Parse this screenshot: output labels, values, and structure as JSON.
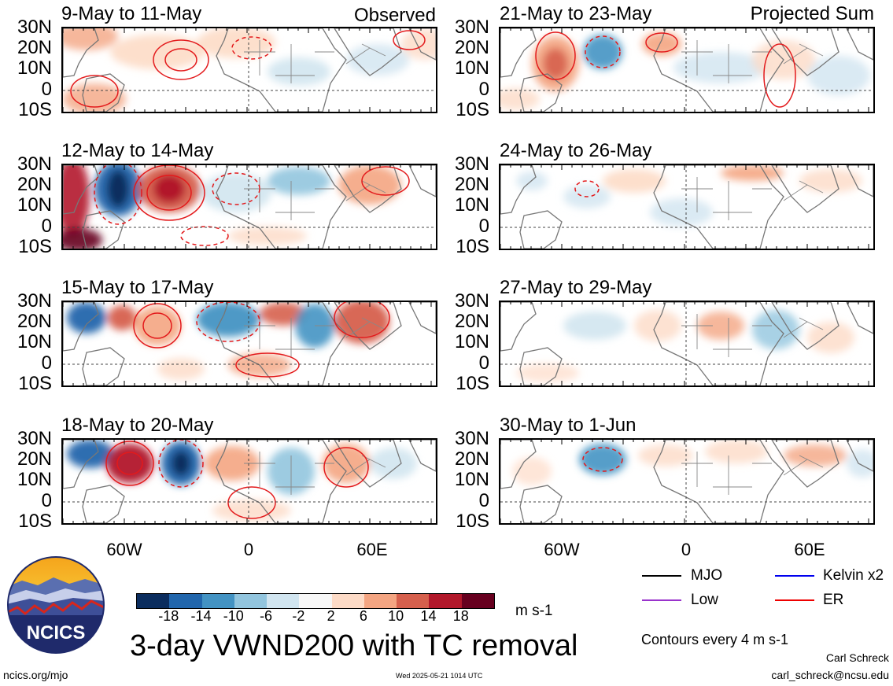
{
  "panels": {
    "observed": [
      {
        "title": "9-May to 11-May"
      },
      {
        "title": "12-May to 14-May"
      },
      {
        "title": "15-May to 17-May"
      },
      {
        "title": "18-May to 20-May"
      }
    ],
    "projected": [
      {
        "title": "21-May to 23-May"
      },
      {
        "title": "24-May to 26-May"
      },
      {
        "title": "27-May to 29-May"
      },
      {
        "title": "30-May to 1-Jun"
      }
    ],
    "observed_header": "Observed",
    "projected_header": "Projected Sum"
  },
  "lat_labels": [
    "30N",
    "20N",
    "10N",
    "0",
    "10S"
  ],
  "lon_labels": [
    "60W",
    "0",
    "60E"
  ],
  "colorbar": {
    "labels": [
      "-18",
      "-14",
      "-10",
      "-6",
      "-2",
      "2",
      "6",
      "10",
      "14",
      "18"
    ],
    "colors": [
      "#0b2d5e",
      "#2166ac",
      "#4393c3",
      "#92c5de",
      "#d1e5f0",
      "#f7f7f7",
      "#fddbc7",
      "#f4a582",
      "#d6604d",
      "#b2182b",
      "#67001f"
    ],
    "units": "m s-1"
  },
  "legend": [
    {
      "label": "MJO",
      "color": "#000000"
    },
    {
      "label": "Kelvin x2",
      "color": "#0000ee"
    },
    {
      "label": "Low",
      "color": "#9933cc"
    },
    {
      "label": "ER",
      "color": "#ee0000"
    }
  ],
  "title": "3-day VWND200 with TC removal",
  "contour_note": "Contours every 4 m s-1",
  "author": "Carl Schreck",
  "email": "carl_schreck@ncsu.edu",
  "url": "ncics.org/mjo",
  "timestamp": "Wed 2025-05-21 1014 UTC",
  "logo_text": "NCICS"
}
